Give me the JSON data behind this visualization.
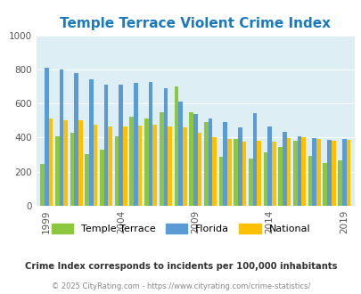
{
  "title": "Temple Terrace Violent Crime Index",
  "years": [
    1999,
    2000,
    2001,
    2002,
    2003,
    2004,
    2005,
    2006,
    2007,
    2008,
    2009,
    2010,
    2011,
    2012,
    2013,
    2014,
    2015,
    2016,
    2017,
    2018,
    2019
  ],
  "temple_terrace": [
    245,
    410,
    430,
    305,
    330,
    405,
    525,
    510,
    550,
    700,
    550,
    490,
    285,
    390,
    275,
    315,
    345,
    380,
    295,
    250,
    265
  ],
  "florida": [
    810,
    800,
    780,
    740,
    710,
    710,
    720,
    725,
    690,
    610,
    540,
    510,
    490,
    460,
    545,
    465,
    435,
    405,
    395,
    385,
    390
  ],
  "national": [
    510,
    500,
    500,
    475,
    465,
    465,
    470,
    475,
    465,
    460,
    430,
    400,
    390,
    375,
    380,
    375,
    395,
    400,
    390,
    380,
    385
  ],
  "bar_colors": {
    "temple_terrace": "#8dc63f",
    "florida": "#5b9bd5",
    "national": "#ffc000"
  },
  "ylim": [
    0,
    1000
  ],
  "yticks": [
    0,
    200,
    400,
    600,
    800,
    1000
  ],
  "xlabel_tick_years": [
    1999,
    2004,
    2009,
    2014,
    2019
  ],
  "plot_bg": "#ddeef5",
  "title_color": "#1a7abf",
  "legend_labels": [
    "Temple Terrace",
    "Florida",
    "National"
  ],
  "footnote1": "Crime Index corresponds to incidents per 100,000 inhabitants",
  "footnote2": "© 2025 CityRating.com - https://www.cityrating.com/crime-statistics/",
  "footnote_color": "#888888",
  "title_fontsize": 11,
  "tick_fontsize": 7.5,
  "bar_width": 0.28
}
